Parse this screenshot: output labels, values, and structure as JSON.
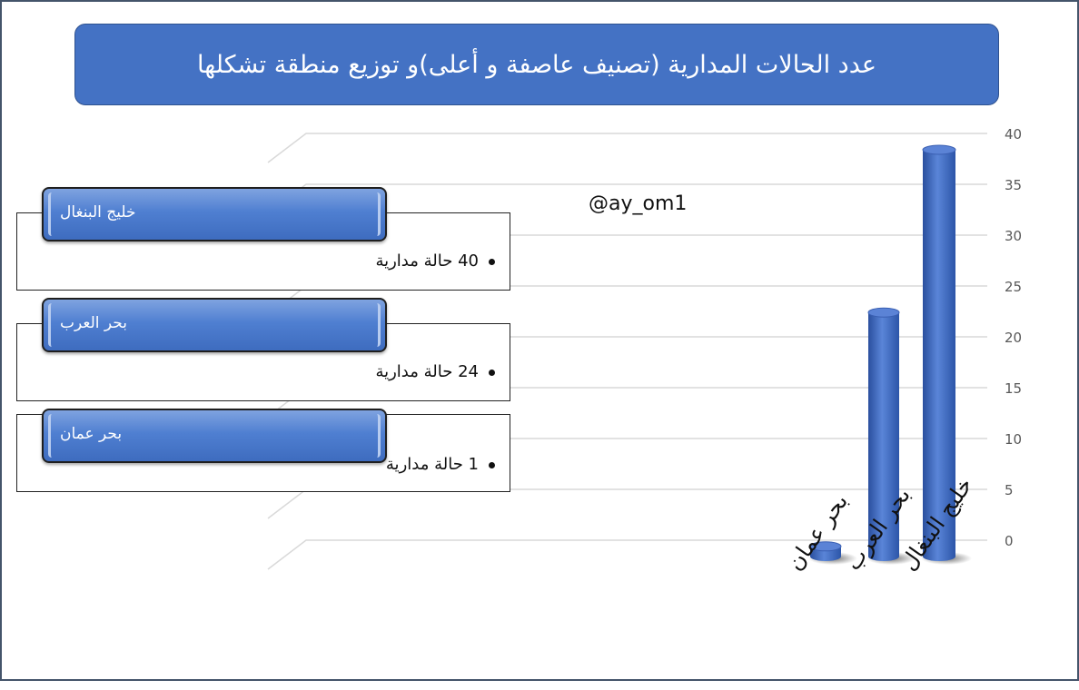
{
  "title": "عدد الحالات المدارية (تصنيف عاصفة و أعلى)و توزيع منطقة تشكلها",
  "watermark": "@ay_om1",
  "cards": [
    {
      "region": "خليج البنغال",
      "value_text": "40 حالة مدارية"
    },
    {
      "region": "بحر العرب",
      "value_text": "24 حالة مدارية"
    },
    {
      "region": "بحر عمان",
      "value_text": "1 حالة مدارية"
    }
  ],
  "colors": {
    "accent": "#4472c4",
    "bar": "#3f67c4",
    "grid": "#d9d9d9"
  },
  "chart_data": {
    "type": "bar",
    "categories": [
      "بحر عمان",
      "بحر العرب",
      "خليج البنغال"
    ],
    "values": [
      1,
      24,
      40
    ],
    "ylim": [
      0,
      40
    ],
    "yticks": [
      0,
      5,
      10,
      15,
      20,
      25,
      30,
      35,
      40
    ],
    "grid": true,
    "legend": false
  }
}
